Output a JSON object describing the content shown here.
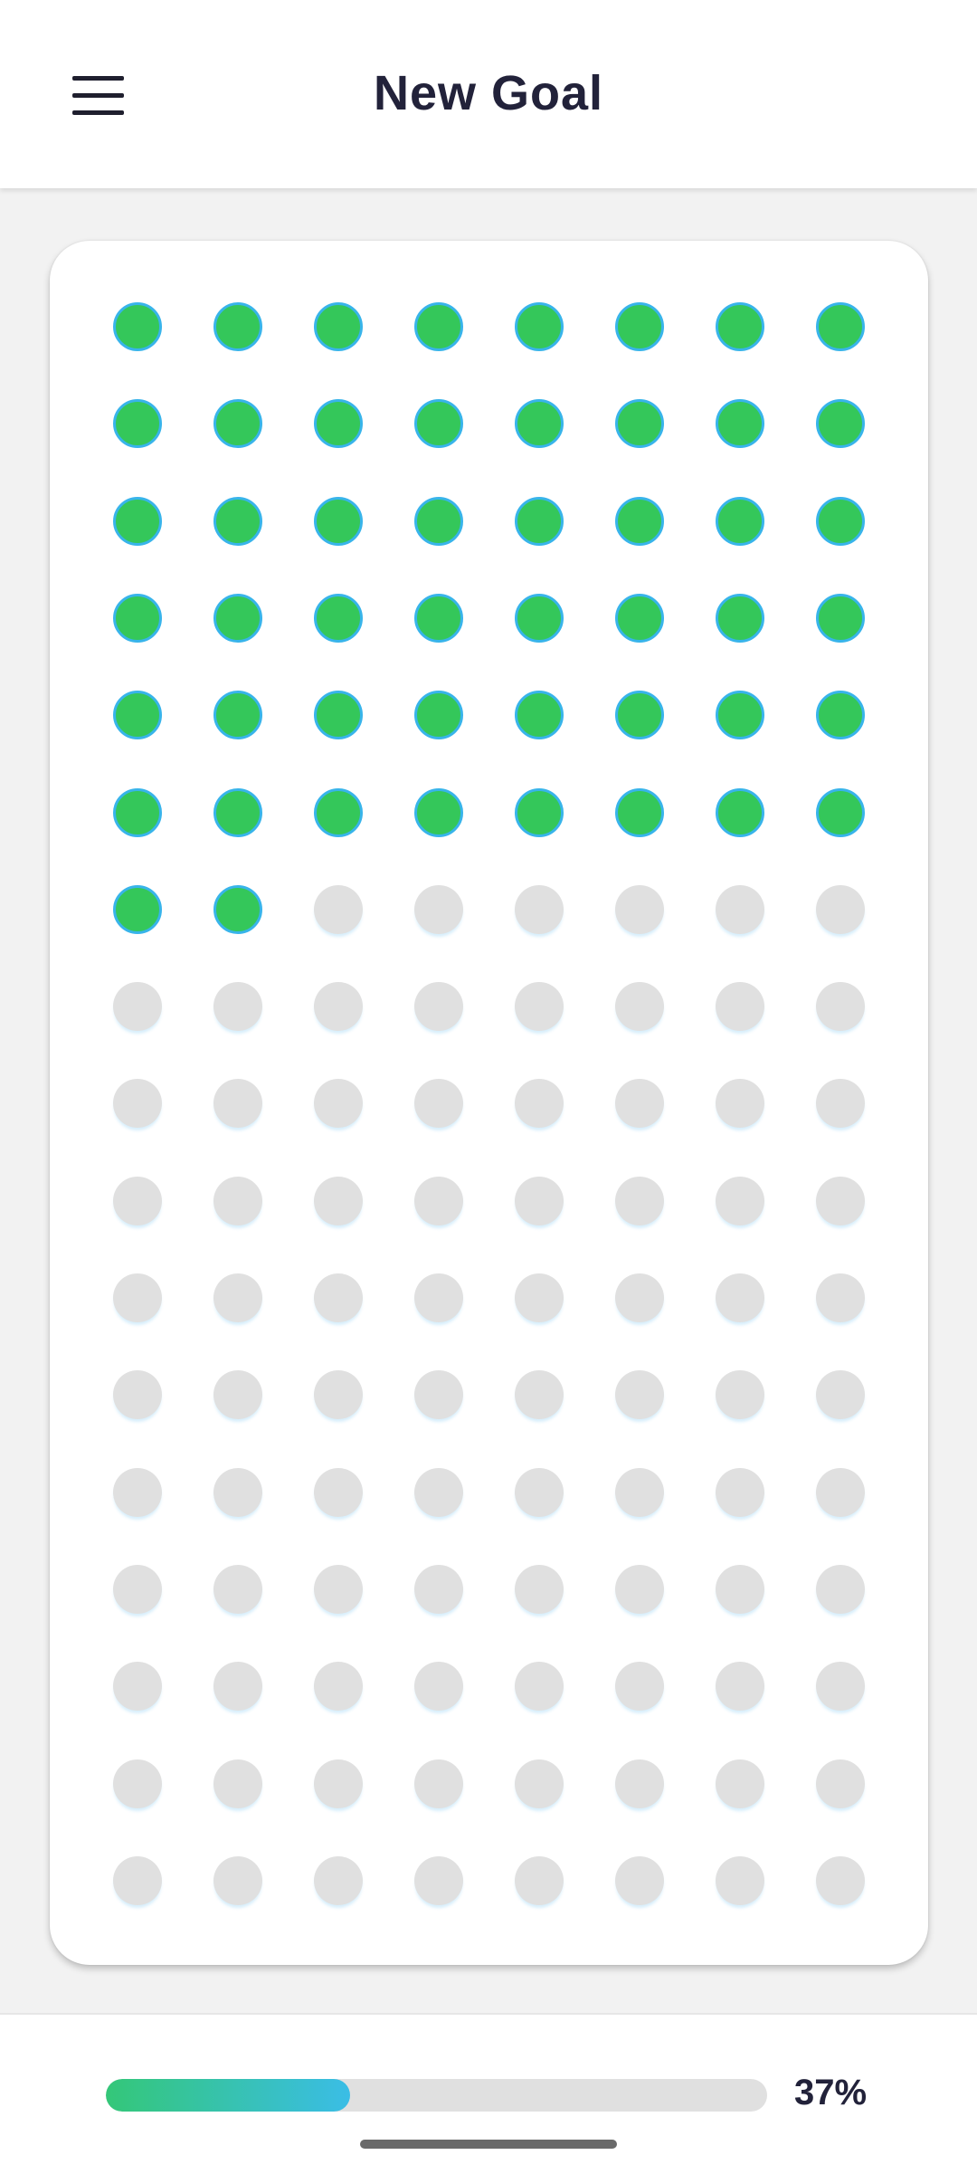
{
  "header": {
    "title": "New Goal",
    "menu_icon": "hamburger-menu-icon"
  },
  "goal_grid": {
    "columns": 8,
    "rows": 17,
    "filled_count": 50,
    "colors": {
      "filled": "#34c75a",
      "filled_border": "#38b4ea",
      "empty": "#e0e0e0"
    }
  },
  "progress": {
    "fraction": 0.37,
    "label": "37%",
    "colors": {
      "start": "#34c778",
      "end": "#3abde6",
      "track": "#e0e0e0"
    }
  }
}
